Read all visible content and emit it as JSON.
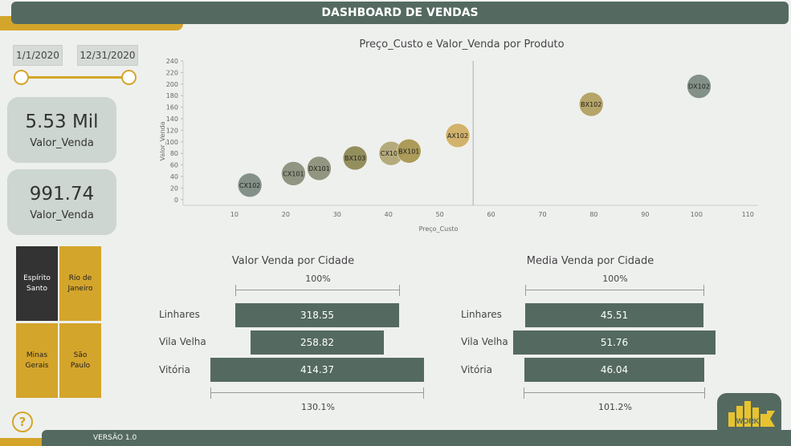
{
  "header": {
    "title": "DASHBOARD DE VENDAS"
  },
  "filters": {
    "start_date": "1/1/2020",
    "end_date": "12/31/2020"
  },
  "kpis": [
    {
      "value": "5.53 Mil",
      "label": "Valor_Venda"
    },
    {
      "value": "991.74",
      "label": "Valor_Venda"
    }
  ],
  "cities": [
    {
      "line1": "Espírito",
      "line2": "Santo",
      "selected": true
    },
    {
      "line1": "Rio de",
      "line2": "Janeiro",
      "selected": false
    },
    {
      "line1": "Minas",
      "line2": "Gerais",
      "selected": false
    },
    {
      "line1": "São",
      "line2": "Paulo",
      "selected": false
    }
  ],
  "footer": {
    "version": "VERSÃO 1.0",
    "logo_text": "WORK"
  },
  "colors": {
    "primary": "#546a60",
    "accent": "#d4a52b",
    "selected_tile": "#333333"
  },
  "icons": {
    "help": "question-mark-icon",
    "logo": "work-logo-icon"
  },
  "chart_data": [
    {
      "type": "scatter",
      "title": "Preço_Custo e Valor_Venda por Produto",
      "xlabel": "Preço_Custo",
      "ylabel": "Valor_Venda",
      "xlim": [
        0,
        112
      ],
      "ylim": [
        -10,
        240
      ],
      "xticks": [
        10,
        20,
        30,
        40,
        50,
        60,
        70,
        80,
        90,
        100,
        110
      ],
      "yticks": [
        0,
        20,
        40,
        60,
        80,
        100,
        120,
        140,
        160,
        180,
        200,
        220,
        240
      ],
      "reference_line_x": 56.5,
      "points": [
        {
          "label": "CX102",
          "x": 13,
          "y": 25,
          "color": "#7f8c84"
        },
        {
          "label": "CX101",
          "x": 21.5,
          "y": 45,
          "color": "#8d917e"
        },
        {
          "label": "DX101",
          "x": 26.5,
          "y": 54,
          "color": "#8e917a"
        },
        {
          "label": "BX103",
          "x": 33.5,
          "y": 72,
          "color": "#8f8a56"
        },
        {
          "label": "CX103",
          "x": 40.5,
          "y": 80,
          "color": "#b3a776"
        },
        {
          "label": "BX101",
          "x": 44,
          "y": 84,
          "color": "#a99752"
        },
        {
          "label": "AX102",
          "x": 53.5,
          "y": 111,
          "color": "#d1b066"
        },
        {
          "label": "BX102",
          "x": 79.5,
          "y": 165,
          "color": "#b3a161"
        },
        {
          "label": "DX102",
          "x": 100.5,
          "y": 196,
          "color": "#7f8c84"
        }
      ]
    },
    {
      "type": "bar",
      "title": "Valor Venda por Cidade",
      "categories": [
        "Linhares",
        "Vila Velha",
        "Vitória"
      ],
      "values": [
        318.55,
        258.82,
        414.37
      ],
      "value_labels": [
        "318.55",
        "258.82",
        "414.37"
      ],
      "top_pct": "100%",
      "bottom_pct": "130.1%"
    },
    {
      "type": "bar",
      "title": "Media Venda por Cidade",
      "categories": [
        "Linhares",
        "Vila Velha",
        "Vitória"
      ],
      "values": [
        45.51,
        51.76,
        46.04
      ],
      "value_labels": [
        "45.51",
        "51.76",
        "46.04"
      ],
      "top_pct": "100%",
      "bottom_pct": "101.2%"
    }
  ]
}
